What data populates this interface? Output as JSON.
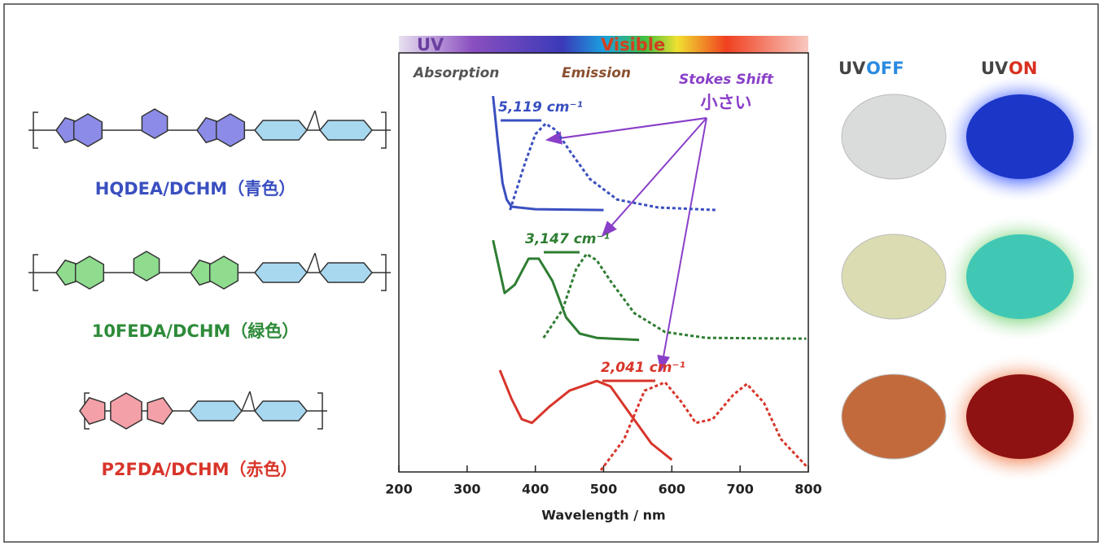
{
  "chart_data": {
    "type": "line",
    "banner": {
      "uv": "UV",
      "visible": "Visible"
    },
    "annotations": {
      "absorption": "Absorption",
      "emission": "Emission",
      "stokes_shift": "Stokes Shift",
      "small": "小さい"
    },
    "shift_labels": [
      "5,119 cm⁻¹",
      "3,147 cm⁻¹",
      "2,041 cm⁻¹"
    ],
    "xlabel": "Wavelength / nm",
    "xlim": [
      200,
      800
    ],
    "xticks": [
      200,
      300,
      400,
      500,
      600,
      700,
      800
    ],
    "ylim": [
      0,
      100
    ],
    "series": [
      {
        "color": "#3a4fc0",
        "dashed": false,
        "x": [
          338,
          345,
          352,
          358,
          365,
          400,
          500
        ],
        "values": [
          89.7,
          78.6,
          68.9,
          65.0,
          63.3,
          62.7,
          62.5
        ]
      },
      {
        "color": "#3a4fc0",
        "dashed": true,
        "x": [
          363,
          385,
          400,
          415,
          430,
          450,
          480,
          520,
          580,
          665
        ],
        "values": [
          62.5,
          73.8,
          80.6,
          83.1,
          81.6,
          76.7,
          69.9,
          65.0,
          63.1,
          62.5
        ]
      },
      {
        "color": "#2e7d32",
        "dashed": false,
        "x": [
          338,
          355,
          370,
          390,
          405,
          425,
          445,
          465,
          490,
          552
        ],
        "values": [
          55.3,
          42.7,
          44.7,
          50.9,
          50.9,
          45.6,
          36.9,
          33.0,
          32.0,
          31.5
        ]
      },
      {
        "color": "#2e7d32",
        "dashed": true,
        "x": [
          412,
          440,
          460,
          475,
          490,
          510,
          545,
          590,
          650,
          797
        ],
        "values": [
          32.0,
          38.8,
          48.5,
          52.0,
          50.5,
          45.6,
          37.9,
          33.4,
          32.0,
          31.8
        ]
      },
      {
        "color": "#d8352a",
        "dashed": false,
        "x": [
          348,
          365,
          380,
          395,
          420,
          450,
          490,
          510,
          540,
          570,
          600
        ],
        "values": [
          24.3,
          17.5,
          12.6,
          11.7,
          15.5,
          19.4,
          21.7,
          20.4,
          13.6,
          6.8,
          2.9
        ]
      },
      {
        "color": "#d8352a",
        "dashed": true,
        "x": [
          496,
          530,
          560,
          590,
          615,
          635,
          660,
          690,
          710,
          735,
          760,
          797
        ],
        "values": [
          0.4,
          7.8,
          19.4,
          21.4,
          16.5,
          11.7,
          12.6,
          18.4,
          21.0,
          16.5,
          7.8,
          1.4
        ]
      }
    ]
  },
  "polymers": [
    {
      "label": "HQDEA/DCHM（青色）",
      "color": "#3a4fc0"
    },
    {
      "label": "10FEDA/DCHM（緑色）",
      "color": "#2e8b3a"
    },
    {
      "label": "P2FDA/DCHM（赤色）",
      "color": "#d8352a"
    }
  ],
  "photos": {
    "uv": "UV",
    "off": "OFF",
    "on": "ON"
  }
}
